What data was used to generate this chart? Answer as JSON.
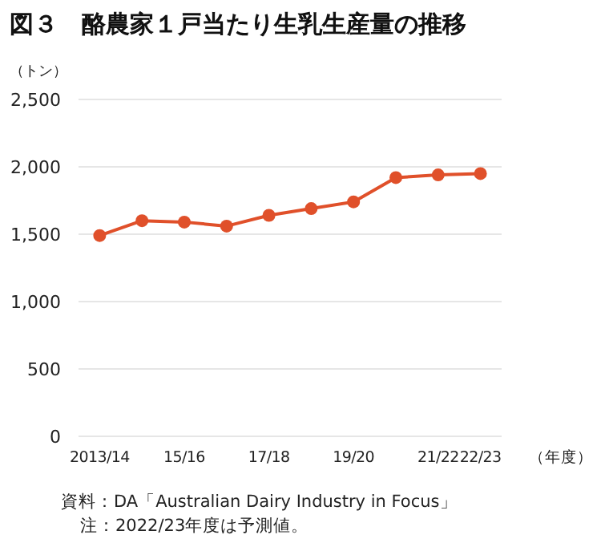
{
  "chart_data": {
    "type": "line",
    "title": "図３　酪農家１戸当たり生乳生産量の推移",
    "ylabel": "（トン）",
    "xlabel": "（年度）",
    "categories": [
      "2013/14",
      null,
      "15/16",
      null,
      "17/18",
      null,
      "19/20",
      null,
      "21/22",
      "22/23"
    ],
    "series": [
      {
        "color": "#e0502a",
        "values": [
          1490,
          1600,
          1590,
          1560,
          1640,
          1690,
          1740,
          1920,
          1940,
          1950
        ]
      }
    ],
    "ylim": [
      0,
      2500
    ],
    "yticks": [
      0,
      500,
      {
        "value": 1000,
        "label": "1,000"
      },
      {
        "value": 1500,
        "label": "1,500"
      },
      {
        "value": 2000,
        "label": "2,000"
      },
      {
        "value": 2500,
        "label": "2,500"
      }
    ],
    "grid": "y",
    "marker": "circle",
    "line_style": "solid",
    "annotations": [
      "資料：DA「Australian Dairy Industry in Focus」",
      "注：2022/23年度は予測値。"
    ]
  }
}
